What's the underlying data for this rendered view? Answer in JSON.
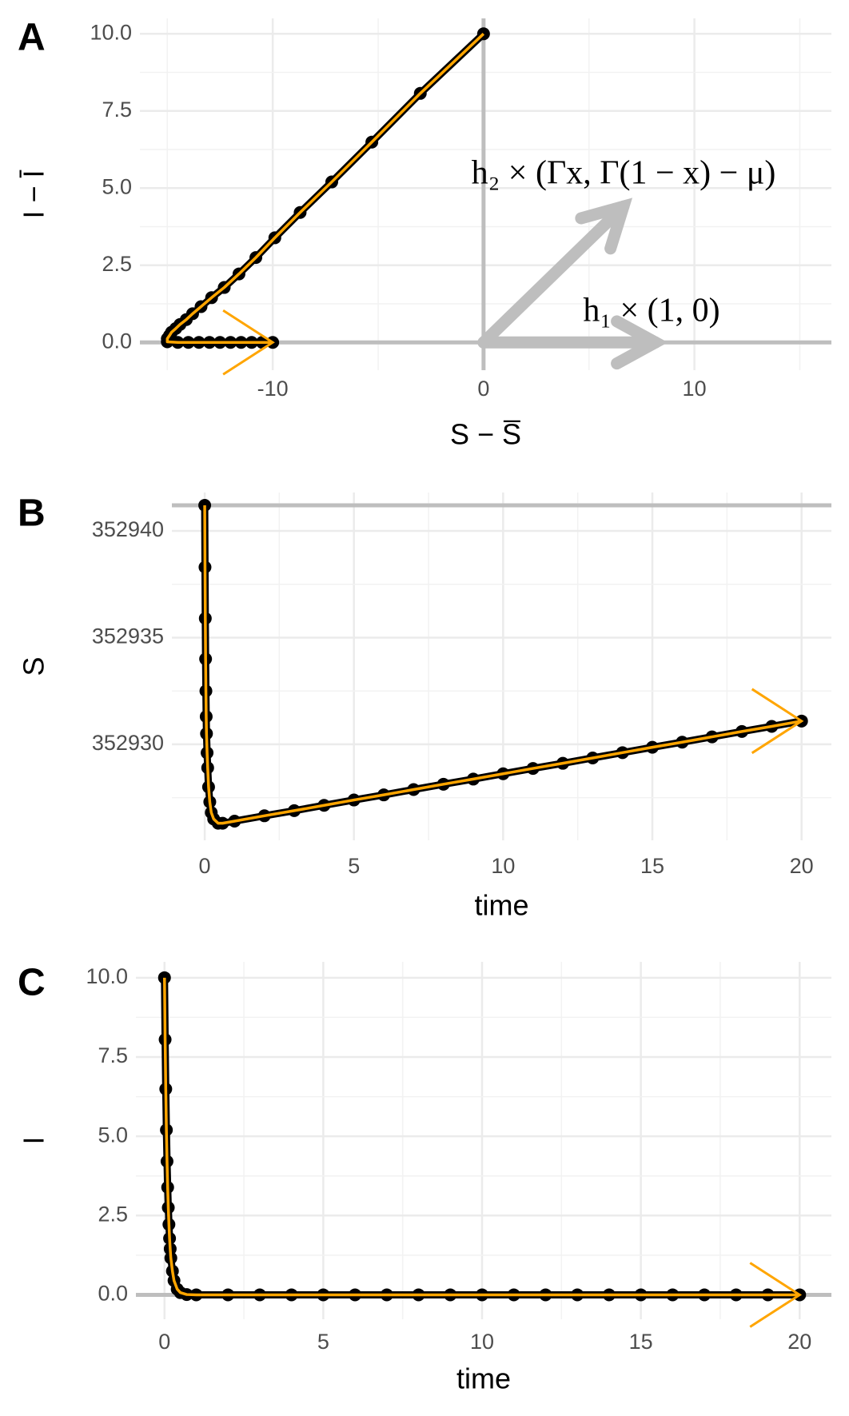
{
  "chart_data": [
    {
      "type": "line",
      "label": "A",
      "xlabel": "S − S̅",
      "ylabel": "I − Ī",
      "x": [
        0,
        -3.0,
        -5.3,
        -7.2,
        -8.7,
        -9.9,
        -10.8,
        -11.6,
        -12.3,
        -12.9,
        -13.4,
        -13.8,
        -14.1,
        -14.4,
        -14.6,
        -14.8,
        -14.9,
        -15.0,
        -15.0,
        -14.5,
        -14.0,
        -13.5,
        -13.0,
        -12.5,
        -12.0,
        -11.5,
        -11.0,
        -10.5,
        -10.0
      ],
      "values": [
        10,
        8.07,
        6.49,
        5.2,
        4.21,
        3.39,
        2.75,
        2.22,
        1.78,
        1.45,
        1.16,
        0.93,
        0.74,
        0.58,
        0.45,
        0.33,
        0.22,
        0.12,
        0.02,
        0,
        0,
        0,
        0,
        0,
        0,
        0,
        0,
        0,
        0
      ],
      "marker_color": "#000000",
      "line_color": "#ffa500",
      "ref_color": "#bebebe",
      "hline": 0,
      "vline": 0,
      "xlim": [
        -16.3,
        16.5
      ],
      "ylim": [
        -0.9,
        10.5
      ],
      "xticks": [
        -10,
        0,
        10
      ],
      "yticks": [
        {
          "value": 0,
          "label": "0.0"
        },
        {
          "value": 2.5,
          "label": "2.5"
        },
        {
          "value": 5,
          "label": "5.0"
        },
        {
          "value": 7.5,
          "label": "7.5"
        },
        {
          "value": 10,
          "label": "10.0"
        }
      ],
      "grid": true,
      "annotations": [
        "h₁ × (1, 0)",
        "h₂ × (Γx, Γ(1 − x) − μ)"
      ]
    },
    {
      "type": "line",
      "label": "B",
      "xlabel": "time",
      "ylabel": "S",
      "x": [
        0,
        0.01,
        0.02,
        0.03,
        0.04,
        0.05,
        0.06,
        0.08,
        0.1,
        0.13,
        0.17,
        0.22,
        0.3,
        0.45,
        0.6,
        1,
        2,
        3,
        4,
        5,
        6,
        7,
        8,
        9,
        10,
        11,
        12,
        13,
        14,
        15,
        16,
        17,
        18,
        19,
        20
      ],
      "values": [
        352941.2,
        352938.3,
        352935.9,
        352934.0,
        352932.5,
        352931.3,
        352930.5,
        352929.6,
        352928.9,
        352928.0,
        352927.3,
        352926.8,
        352926.5,
        352926.3,
        352926.3,
        352926.4,
        352926.65,
        352926.89,
        352927.14,
        352927.39,
        352927.63,
        352927.88,
        352928.13,
        352928.37,
        352928.62,
        352928.87,
        352929.11,
        352929.36,
        352929.61,
        352929.86,
        352930.1,
        352930.35,
        352930.6,
        352930.84,
        352931.09
      ],
      "marker_color": "#000000",
      "line_color": "#ffa500",
      "ref_color": "#bebebe",
      "hline": 352941.2,
      "xlim": [
        -1.1,
        21
      ],
      "ylim": [
        352925.5,
        352941.8
      ],
      "xticks": [
        0,
        5,
        10,
        15,
        20
      ],
      "yticks": [
        352930,
        352935,
        352940
      ],
      "grid": true
    },
    {
      "type": "line",
      "label": "C",
      "xlabel": "time",
      "ylabel": "I",
      "x": [
        0,
        0.02,
        0.04,
        0.06,
        0.08,
        0.1,
        0.12,
        0.14,
        0.16,
        0.18,
        0.2,
        0.25,
        0.3,
        0.4,
        0.5,
        0.7,
        1,
        2,
        3,
        4,
        5,
        6,
        7,
        8,
        9,
        10,
        11,
        12,
        13,
        14,
        15,
        16,
        17,
        18,
        19,
        20
      ],
      "values": [
        10,
        8.05,
        6.49,
        5.2,
        4.21,
        3.39,
        2.75,
        2.22,
        1.78,
        1.45,
        1.16,
        0.75,
        0.45,
        0.18,
        0.07,
        0.01,
        0,
        0,
        0,
        0,
        0,
        0,
        0,
        0,
        0,
        0,
        0,
        0,
        0,
        0,
        0,
        0,
        0,
        0,
        0,
        0
      ],
      "marker_color": "#000000",
      "line_color": "#ffa500",
      "ref_color": "#bebebe",
      "hline": 0,
      "xlim": [
        -0.9,
        21
      ],
      "ylim": [
        -0.77,
        10.5
      ],
      "xticks": [
        0,
        5,
        10,
        15,
        20
      ],
      "yticks": [
        {
          "value": 0,
          "label": "0.0"
        },
        {
          "value": 2.5,
          "label": "2.5"
        },
        {
          "value": 5,
          "label": "5.0"
        },
        {
          "value": 7.5,
          "label": "7.5"
        },
        {
          "value": 10,
          "label": "10.0"
        }
      ],
      "grid": true
    }
  ]
}
